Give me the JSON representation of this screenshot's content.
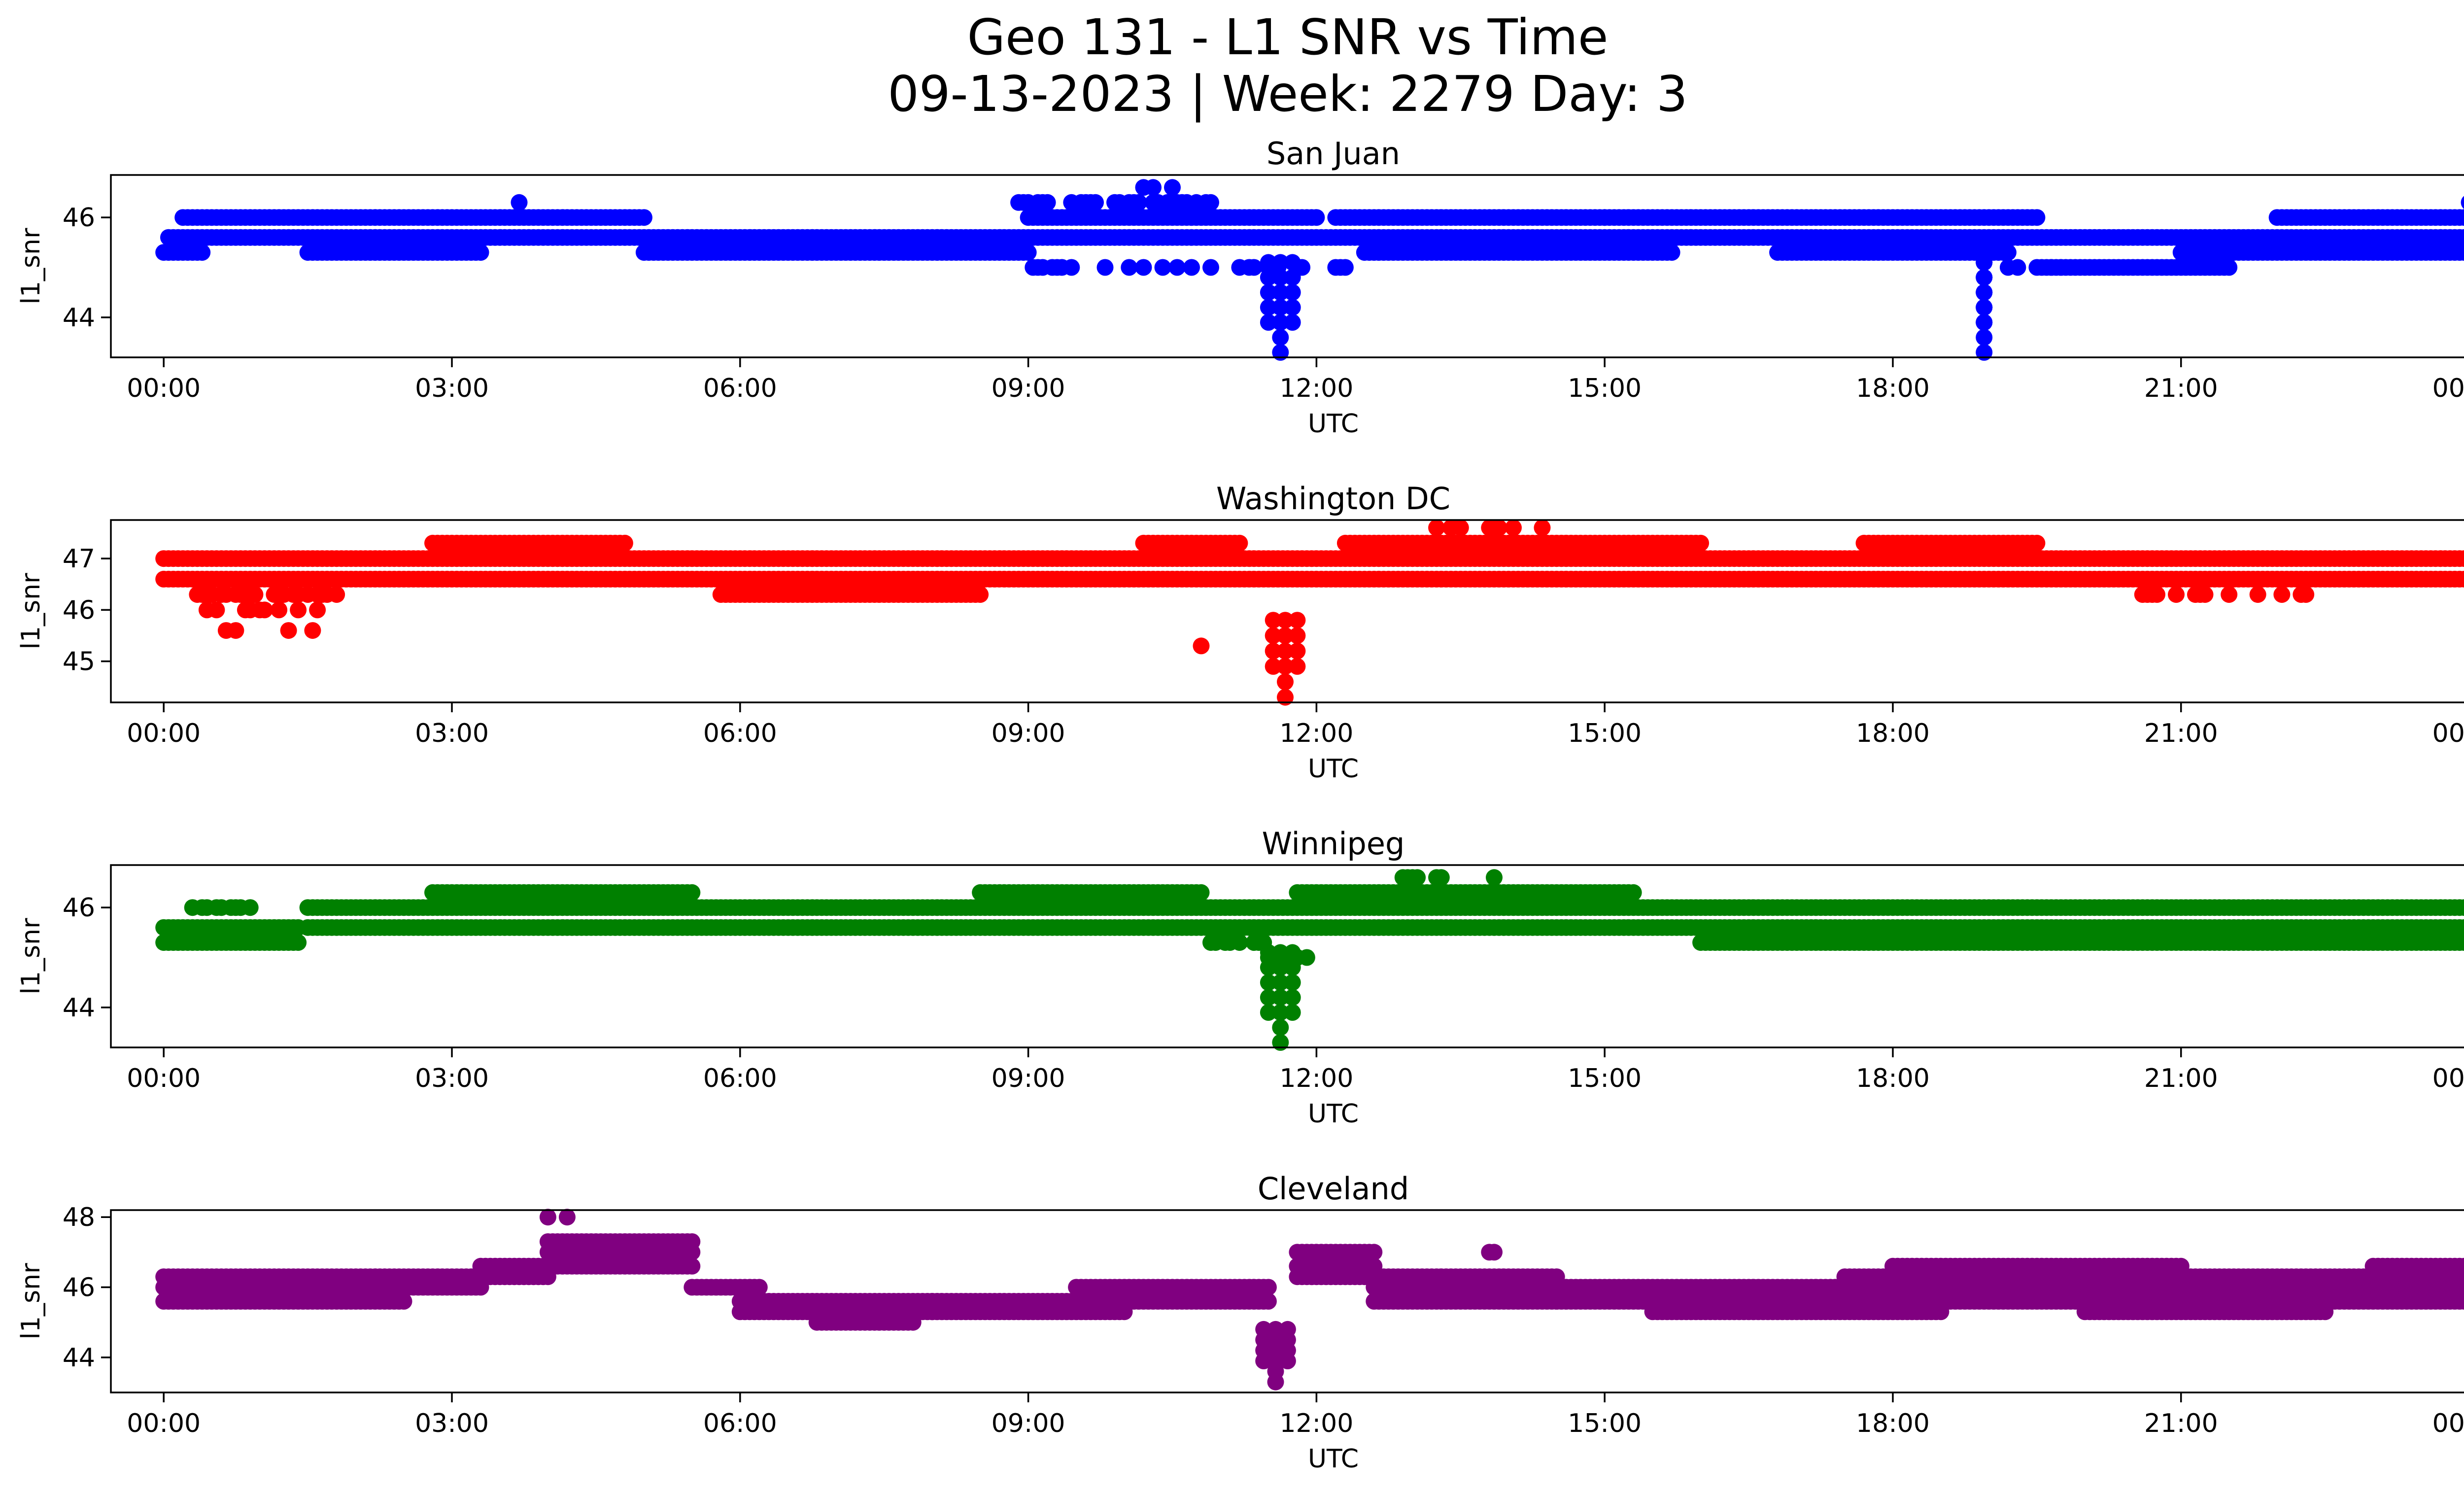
{
  "figure": {
    "title_line1": "Geo 131 - L1 SNR vs Time",
    "title_line2": "09-13-2023 | Week: 2279 Day: 3"
  },
  "chart_data": [
    {
      "type": "scatter",
      "title": "San Juan",
      "xlabel": "UTC",
      "ylabel": "l1_snr",
      "color": "#0000ff",
      "xlim": [
        -0.55,
        24.9
      ],
      "ylim": [
        43.2,
        46.85
      ],
      "yticks": [
        44,
        46
      ],
      "xticks": [
        0,
        3,
        6,
        9,
        12,
        15,
        18,
        21,
        24
      ],
      "xtick_labels": [
        "00:00",
        "03:00",
        "06:00",
        "09:00",
        "12:00",
        "15:00",
        "18:00",
        "21:00",
        "00:00"
      ],
      "levels": [
        46.0,
        45.6,
        45.3
      ],
      "base_segments": [
        [
          0.05,
          24.0,
          45.6
        ],
        [
          0.2,
          5.0,
          46.0
        ],
        [
          0.0,
          0.4,
          45.3
        ],
        [
          1.5,
          3.3,
          45.3
        ],
        [
          5.0,
          9.0,
          45.3
        ],
        [
          9.0,
          12.0,
          46.0
        ],
        [
          12.2,
          15.0,
          46.0
        ],
        [
          12.5,
          15.7,
          45.3
        ],
        [
          15.0,
          19.5,
          46.0
        ],
        [
          16.8,
          19.2,
          45.3
        ],
        [
          19.5,
          21.5,
          45.0
        ],
        [
          21.0,
          24.0,
          45.3
        ],
        [
          22.0,
          24.0,
          46.0
        ]
      ],
      "scatter_ranges": [
        [
          8.9,
          10.9,
          46.3,
          0.7
        ],
        [
          9.9,
          10.7,
          46.6,
          0.3
        ],
        [
          9.0,
          12.5,
          45.0,
          0.4
        ],
        [
          3.7,
          3.7,
          46.3,
          1.0
        ],
        [
          24.0,
          24.0,
          46.3,
          1.0
        ],
        [
          19.0,
          20.0,
          45.0,
          0.3
        ]
      ],
      "dips": [
        [
          11.5,
          11.75,
          43.3
        ],
        [
          18.95,
          18.95,
          43.3
        ]
      ]
    },
    {
      "type": "scatter",
      "title": "Washington DC",
      "xlabel": "UTC",
      "ylabel": "l1_snr",
      "color": "#ff0000",
      "xlim": [
        -0.55,
        24.9
      ],
      "ylim": [
        44.2,
        47.75
      ],
      "yticks": [
        45,
        46,
        47
      ],
      "xticks": [
        0,
        3,
        6,
        9,
        12,
        15,
        18,
        21,
        24
      ],
      "xtick_labels": [
        "00:00",
        "03:00",
        "06:00",
        "09:00",
        "12:00",
        "15:00",
        "18:00",
        "21:00",
        "00:00"
      ],
      "levels": [
        47.3,
        47.0,
        46.6,
        46.3,
        46.0
      ],
      "base_segments": [
        [
          0.0,
          24.0,
          47.0
        ],
        [
          0.0,
          24.0,
          46.6
        ],
        [
          2.8,
          4.8,
          47.3
        ],
        [
          5.8,
          8.5,
          46.3
        ],
        [
          10.2,
          11.2,
          47.3
        ],
        [
          12.3,
          16.0,
          47.3
        ],
        [
          17.7,
          19.5,
          47.3
        ]
      ],
      "scatter_ranges": [
        [
          0.3,
          1.8,
          46.3,
          0.6
        ],
        [
          0.4,
          1.6,
          46.0,
          0.4
        ],
        [
          1.0,
          1.6,
          45.6,
          0.1
        ],
        [
          0.6,
          0.8,
          45.6,
          0.3
        ],
        [
          10.8,
          10.8,
          45.3,
          1.0
        ],
        [
          12.7,
          14.4,
          47.6,
          0.3
        ],
        [
          20.5,
          22.5,
          46.3,
          0.3
        ]
      ],
      "dips": [
        [
          11.55,
          11.8,
          44.3
        ]
      ]
    },
    {
      "type": "scatter",
      "title": "Winnipeg",
      "xlabel": "UTC",
      "ylabel": "l1_snr",
      "color": "#008000",
      "xlim": [
        -0.55,
        24.9
      ],
      "ylim": [
        43.2,
        46.85
      ],
      "yticks": [
        44,
        46
      ],
      "xticks": [
        0,
        3,
        6,
        9,
        12,
        15,
        18,
        21,
        24
      ],
      "xtick_labels": [
        "00:00",
        "03:00",
        "06:00",
        "09:00",
        "12:00",
        "15:00",
        "18:00",
        "21:00",
        "00:00"
      ],
      "levels": [
        46.6,
        46.3,
        46.0,
        45.6,
        45.3
      ],
      "base_segments": [
        [
          0.0,
          1.4,
          45.6
        ],
        [
          0.0,
          1.4,
          45.3
        ],
        [
          1.5,
          24.0,
          46.0
        ],
        [
          1.5,
          24.0,
          45.6
        ],
        [
          2.8,
          5.5,
          46.3
        ],
        [
          8.5,
          10.8,
          46.3
        ],
        [
          11.8,
          15.3,
          46.3
        ],
        [
          16.0,
          24.0,
          45.3
        ]
      ],
      "scatter_ranges": [
        [
          12.5,
          14.0,
          46.6,
          0.3
        ],
        [
          0.3,
          0.9,
          46.0,
          0.5
        ],
        [
          10.7,
          11.5,
          45.3,
          0.5
        ],
        [
          11.4,
          12.0,
          45.0,
          0.4
        ]
      ],
      "dips": [
        [
          11.5,
          11.75,
          43.3
        ]
      ]
    },
    {
      "type": "scatter",
      "title": "Cleveland",
      "xlabel": "UTC",
      "ylabel": "l1_snr",
      "color": "#800080",
      "xlim": [
        -0.55,
        24.9
      ],
      "ylim": [
        43.0,
        48.2
      ],
      "yticks": [
        44,
        46,
        48
      ],
      "xticks": [
        0,
        3,
        6,
        9,
        12,
        15,
        18,
        21,
        24
      ],
      "xtick_labels": [
        "00:00",
        "03:00",
        "06:00",
        "09:00",
        "12:00",
        "15:00",
        "18:00",
        "21:00",
        "00:00"
      ],
      "levels": [
        47.3,
        47.0,
        46.6,
        46.3,
        46.0,
        45.6,
        45.3,
        45.0
      ],
      "base_segments": [
        [
          0.0,
          3.3,
          46.3
        ],
        [
          0.0,
          3.3,
          46.0
        ],
        [
          0.0,
          2.5,
          45.6
        ],
        [
          3.3,
          4.0,
          46.6
        ],
        [
          3.3,
          4.0,
          46.3
        ],
        [
          4.0,
          5.5,
          47.3
        ],
        [
          4.0,
          5.5,
          47.0
        ],
        [
          4.0,
          5.5,
          46.6
        ],
        [
          5.5,
          6.2,
          46.0
        ],
        [
          6.0,
          8.0,
          45.3
        ],
        [
          6.0,
          8.0,
          45.6
        ],
        [
          6.8,
          7.8,
          45.0
        ],
        [
          8.0,
          10.0,
          45.6
        ],
        [
          8.0,
          10.0,
          45.3
        ],
        [
          9.5,
          11.5,
          46.0
        ],
        [
          9.5,
          11.5,
          45.6
        ],
        [
          11.8,
          12.6,
          47.0
        ],
        [
          11.8,
          12.6,
          46.6
        ],
        [
          11.8,
          12.6,
          46.3
        ],
        [
          12.6,
          14.5,
          46.3
        ],
        [
          12.6,
          14.5,
          46.0
        ],
        [
          12.6,
          14.5,
          45.6
        ],
        [
          14.5,
          17.5,
          46.0
        ],
        [
          14.5,
          17.5,
          45.6
        ],
        [
          15.5,
          18.5,
          45.3
        ],
        [
          17.5,
          24.0,
          46.3
        ],
        [
          17.5,
          24.0,
          46.0
        ],
        [
          17.5,
          24.0,
          45.6
        ],
        [
          18.0,
          21.0,
          46.6
        ],
        [
          20.0,
          22.5,
          45.3
        ],
        [
          23.0,
          24.0,
          46.6
        ]
      ],
      "scatter_ranges": [
        [
          4.0,
          4.2,
          48.0,
          0.3
        ],
        [
          13.8,
          14.0,
          47.0,
          0.5
        ]
      ],
      "dips": [
        [
          11.45,
          11.7,
          43.3
        ]
      ]
    }
  ]
}
